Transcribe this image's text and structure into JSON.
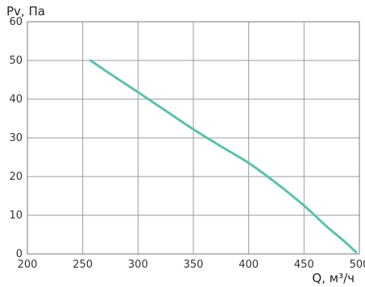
{
  "chart_data": {
    "type": "line",
    "xlabel": "Q, м³/ч",
    "ylabel": "Pv, Па",
    "xlim": [
      200,
      500
    ],
    "ylim": [
      0,
      60
    ],
    "x_ticks": [
      200,
      250,
      300,
      350,
      400,
      450,
      500
    ],
    "y_ticks": [
      0,
      10,
      20,
      30,
      40,
      50,
      60
    ],
    "grid": true,
    "series": [
      {
        "color": "#5cc0b0",
        "x": [
          257,
          275,
          300,
          325,
          350,
          375,
          400,
          425,
          450,
          470,
          485,
          497
        ],
        "y": [
          50,
          46.5,
          41.8,
          37.0,
          32.2,
          27.8,
          23.5,
          18.3,
          12.5,
          7.2,
          3.6,
          0.5
        ]
      }
    ]
  }
}
